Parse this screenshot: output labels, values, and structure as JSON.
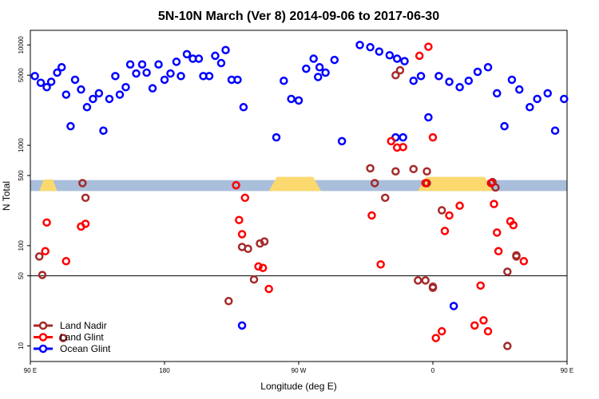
{
  "chart_data": {
    "type": "scatter",
    "title": "5N-10N March (Ver 8)   2014-09-06 to 2017-06-30",
    "xlabel": "Longitude (deg E)",
    "ylabel": "N Total",
    "xlim": [
      90,
      450
    ],
    "ylim_log": [
      7,
      14000
    ],
    "x_ticks": [
      {
        "value": 90,
        "label": "90 E"
      },
      {
        "value": 180,
        "label": "180"
      },
      {
        "value": 270,
        "label": "90 W"
      },
      {
        "value": 360,
        "label": "0"
      },
      {
        "value": 450,
        "label": "90 E"
      },
      {
        "value": 540,
        "label": "180"
      }
    ],
    "y_ticks": [
      {
        "value": 10,
        "label": "10"
      },
      {
        "value": 50,
        "label": "50"
      },
      {
        "value": 100,
        "label": "100"
      },
      {
        "value": 500,
        "label": "500"
      },
      {
        "value": 1000,
        "label": "1000"
      },
      {
        "value": 5000,
        "label": "5000"
      },
      {
        "value": 10000,
        "label": "10000"
      }
    ],
    "reference_line": 50,
    "land_band_range": [
      350,
      450
    ],
    "land_band_color": "#a9bedb",
    "land_fill_color": "#fcd96e",
    "legend": [
      {
        "name": "Land Nadir",
        "color": "#a52a2a"
      },
      {
        "name": "Land Glint",
        "color": "#ff0000"
      },
      {
        "name": "Ocean Glint",
        "color": "#0000ff"
      }
    ],
    "series": [
      {
        "name": "Ocean Glint",
        "color": "#0000ff",
        "points": [
          [
            93,
            4900
          ],
          [
            97,
            4200
          ],
          [
            101,
            3800
          ],
          [
            104,
            4300
          ],
          [
            108,
            5300
          ],
          [
            111,
            6000
          ],
          [
            114,
            3200
          ],
          [
            117,
            1550
          ],
          [
            120,
            4500
          ],
          [
            124,
            3600
          ],
          [
            128,
            2400
          ],
          [
            132,
            2900
          ],
          [
            136,
            3300
          ],
          [
            139,
            1400
          ],
          [
            143,
            2900
          ],
          [
            147,
            4900
          ],
          [
            150,
            3200
          ],
          [
            154,
            3800
          ],
          [
            157,
            6400
          ],
          [
            161,
            5200
          ],
          [
            165,
            6400
          ],
          [
            168,
            5300
          ],
          [
            172,
            3700
          ],
          [
            176,
            6400
          ],
          [
            180,
            4500
          ],
          [
            184,
            5200
          ],
          [
            188,
            6800
          ],
          [
            191,
            4900
          ],
          [
            195,
            8100
          ],
          [
            199,
            7300
          ],
          [
            203,
            7300
          ],
          [
            206,
            4900
          ],
          [
            210,
            4900
          ],
          [
            214,
            7800
          ],
          [
            218,
            6600
          ],
          [
            221,
            8900
          ],
          [
            225,
            4500
          ],
          [
            229,
            4500
          ],
          [
            233,
            2400
          ],
          [
            255,
            1200
          ],
          [
            260,
            4400
          ],
          [
            265,
            2900
          ],
          [
            270,
            2800
          ],
          [
            275,
            5800
          ],
          [
            280,
            7300
          ],
          [
            284,
            6000
          ],
          [
            288,
            5300
          ],
          [
            294,
            7100
          ],
          [
            299,
            1100
          ],
          [
            311,
            10000
          ],
          [
            318,
            9500
          ],
          [
            324,
            8600
          ],
          [
            331,
            7900
          ],
          [
            336,
            7300
          ],
          [
            341,
            6900
          ],
          [
            347,
            4400
          ],
          [
            352,
            4900
          ],
          [
            357,
            1900
          ],
          [
            364,
            4900
          ],
          [
            371,
            4300
          ],
          [
            378,
            3800
          ],
          [
            384,
            4400
          ],
          [
            390,
            5400
          ],
          [
            397,
            6000
          ],
          [
            403,
            3300
          ],
          [
            408,
            1550
          ],
          [
            413,
            4500
          ],
          [
            418,
            3600
          ],
          [
            425,
            2400
          ],
          [
            430,
            2900
          ],
          [
            437,
            3300
          ],
          [
            442,
            1400
          ],
          [
            448,
            2900
          ],
          [
            455,
            4900
          ],
          [
            461,
            3200
          ],
          [
            466,
            3800
          ],
          [
            232,
            16
          ],
          [
            283,
            4800
          ],
          [
            335,
            1200
          ],
          [
            340,
            1200
          ],
          [
            374,
            25
          ]
        ]
      },
      {
        "name": "Land Nadir",
        "color": "#a52a2a",
        "points": [
          [
            125,
            420
          ],
          [
            127,
            300
          ],
          [
            96,
            78
          ],
          [
            98,
            51
          ],
          [
            112,
            12
          ],
          [
            223,
            28
          ],
          [
            232,
            97
          ],
          [
            236,
            93
          ],
          [
            240,
            46
          ],
          [
            244,
            105
          ],
          [
            247,
            110
          ],
          [
            318,
            590
          ],
          [
            321,
            420
          ],
          [
            328,
            300
          ],
          [
            356,
            550
          ],
          [
            356,
            420
          ],
          [
            335,
            550
          ],
          [
            335,
            5000
          ],
          [
            338,
            5600
          ],
          [
            347,
            580
          ],
          [
            366,
            225
          ],
          [
            400,
            430
          ],
          [
            402,
            380
          ],
          [
            360,
            38
          ],
          [
            360,
            39
          ],
          [
            410,
            10
          ],
          [
            416,
            80
          ],
          [
            416,
            78
          ],
          [
            410,
            55
          ],
          [
            355,
            45
          ],
          [
            350,
            45
          ],
          [
            470,
            10
          ]
        ]
      },
      {
        "name": "Land Glint",
        "color": "#ff0000",
        "points": [
          [
            228,
            400
          ],
          [
            234,
            300
          ],
          [
            230,
            180
          ],
          [
            232,
            130
          ],
          [
            124,
            155
          ],
          [
            127,
            165
          ],
          [
            101,
            170
          ],
          [
            100,
            88
          ],
          [
            114,
            70
          ],
          [
            243,
            62
          ],
          [
            246,
            60
          ],
          [
            250,
            37
          ],
          [
            319,
            200
          ],
          [
            325,
            65
          ],
          [
            332,
            1100
          ],
          [
            336,
            950
          ],
          [
            340,
            960
          ],
          [
            351,
            7800
          ],
          [
            357,
            9600
          ],
          [
            360,
            1200
          ],
          [
            355,
            420
          ],
          [
            368,
            140
          ],
          [
            371,
            200
          ],
          [
            378,
            250
          ],
          [
            399,
            420
          ],
          [
            401,
            260
          ],
          [
            403,
            135
          ],
          [
            404,
            88
          ],
          [
            412,
            175
          ],
          [
            414,
            160
          ],
          [
            421,
            70
          ],
          [
            388,
            16
          ],
          [
            392,
            40
          ],
          [
            394,
            18
          ],
          [
            397,
            14
          ],
          [
            362,
            12
          ],
          [
            366,
            14
          ]
        ]
      }
    ]
  }
}
